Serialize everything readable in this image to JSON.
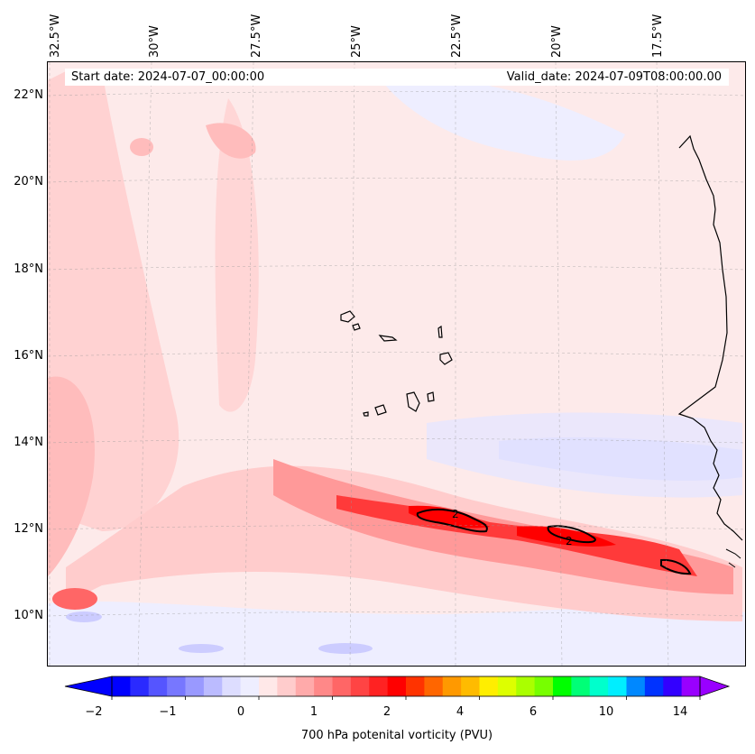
{
  "map": {
    "start_date": "Start date: 2024-07-07_00:00:00",
    "valid_date": "Valid_date: 2024-07-09T08:00:00.00",
    "lon_labels": [
      "32.5°W",
      "30°W",
      "27.5°W",
      "25°W",
      "22.5°W",
      "20°W",
      "17.5°W"
    ],
    "lat_labels": [
      "22°N",
      "20°N",
      "18°N",
      "16°N",
      "14°N",
      "12°N",
      "10°N"
    ],
    "contour_label": "2",
    "gridlines": true
  },
  "colorbar": {
    "label": "700 hPa potenital vorticity (PVU)",
    "tick_labels": [
      "−2",
      "−1",
      "0",
      "1",
      "2",
      "4",
      "6",
      "10",
      "14"
    ],
    "extend": "both",
    "colors": [
      "#0000ff",
      "#2a2aff",
      "#5555ff",
      "#7777ff",
      "#9999ff",
      "#bbbbff",
      "#ddddff",
      "#eeeeff",
      "#ffe8e8",
      "#ffcccc",
      "#ffaaaa",
      "#ff8888",
      "#ff6666",
      "#ff4444",
      "#ff2222",
      "#ff0000",
      "#ff3300",
      "#ff6600",
      "#ff9900",
      "#ffbb00",
      "#ffee00",
      "#ddff00",
      "#aaff00",
      "#77ff00",
      "#00ff00",
      "#00ff77",
      "#00ffcc",
      "#00eeff",
      "#0088ff",
      "#0033ff",
      "#3300ff",
      "#9900ff"
    ]
  }
}
